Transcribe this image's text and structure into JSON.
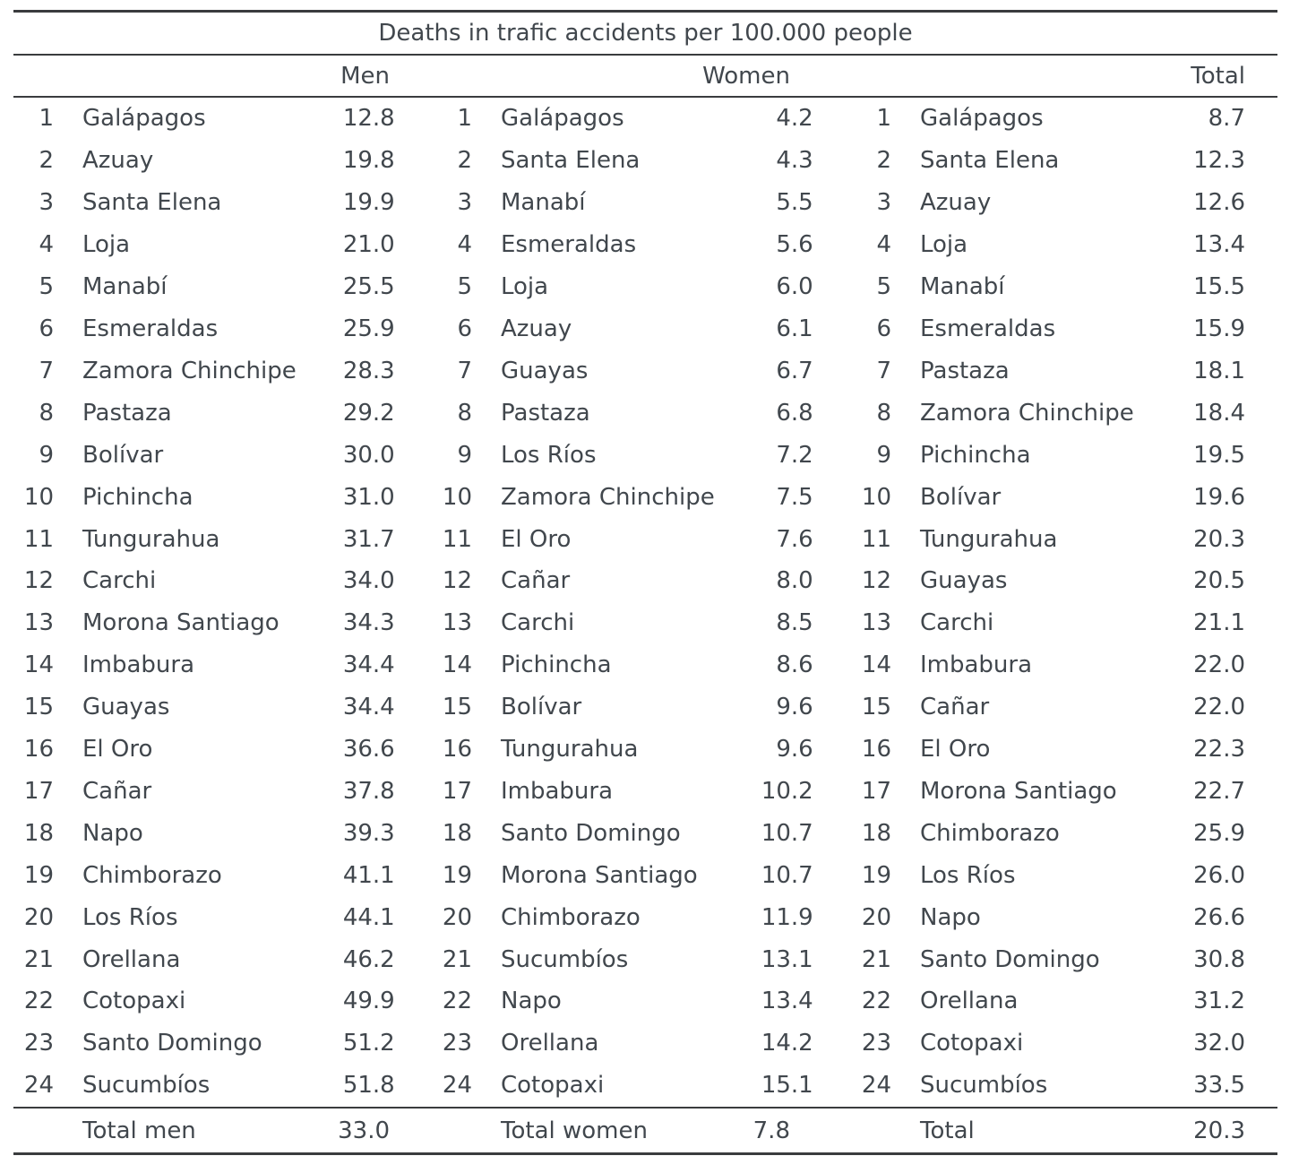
{
  "chart_data": {
    "type": "table",
    "title": "Deaths in trafic accidents per 100.000 people",
    "layout": {
      "panels": 3,
      "rows_per_panel": 24,
      "grid": "off",
      "rules": "horizontal-only"
    },
    "colors": {
      "text": "#41474d",
      "rule": "#3a3c3e",
      "background": "#ffffff"
    },
    "groups": [
      {
        "header": "Men",
        "total_label": "Total men",
        "total_value": "33.0",
        "rows": [
          [
            "1",
            "Galápagos",
            "12.8"
          ],
          [
            "2",
            "Azuay",
            "19.8"
          ],
          [
            "3",
            "Santa Elena",
            "19.9"
          ],
          [
            "4",
            "Loja",
            "21.0"
          ],
          [
            "5",
            "Manabí",
            "25.5"
          ],
          [
            "6",
            "Esmeraldas",
            "25.9"
          ],
          [
            "7",
            "Zamora Chinchipe",
            "28.3"
          ],
          [
            "8",
            "Pastaza",
            "29.2"
          ],
          [
            "9",
            "Bolívar",
            "30.0"
          ],
          [
            "10",
            "Pichincha",
            "31.0"
          ],
          [
            "11",
            "Tungurahua",
            "31.7"
          ],
          [
            "12",
            "Carchi",
            "34.0"
          ],
          [
            "13",
            "Morona Santiago",
            "34.3"
          ],
          [
            "14",
            "Imbabura",
            "34.4"
          ],
          [
            "15",
            "Guayas",
            "34.4"
          ],
          [
            "16",
            "El Oro",
            "36.6"
          ],
          [
            "17",
            "Cañar",
            "37.8"
          ],
          [
            "18",
            "Napo",
            "39.3"
          ],
          [
            "19",
            "Chimborazo",
            "41.1"
          ],
          [
            "20",
            "Los Ríos",
            "44.1"
          ],
          [
            "21",
            "Orellana",
            "46.2"
          ],
          [
            "22",
            "Cotopaxi",
            "49.9"
          ],
          [
            "23",
            "Santo Domingo",
            "51.2"
          ],
          [
            "24",
            "Sucumbíos",
            "51.8"
          ]
        ]
      },
      {
        "header": "Women",
        "total_label": "Total women",
        "total_value": "7.8",
        "rows": [
          [
            "1",
            "Galápagos",
            "4.2"
          ],
          [
            "2",
            "Santa Elena",
            "4.3"
          ],
          [
            "3",
            "Manabí",
            "5.5"
          ],
          [
            "4",
            "Esmeraldas",
            "5.6"
          ],
          [
            "5",
            "Loja",
            "6.0"
          ],
          [
            "6",
            "Azuay",
            "6.1"
          ],
          [
            "7",
            "Guayas",
            "6.7"
          ],
          [
            "8",
            "Pastaza",
            "6.8"
          ],
          [
            "9",
            "Los Ríos",
            "7.2"
          ],
          [
            "10",
            "Zamora Chinchipe",
            "7.5"
          ],
          [
            "11",
            "El Oro",
            "7.6"
          ],
          [
            "12",
            "Cañar",
            "8.0"
          ],
          [
            "13",
            "Carchi",
            "8.5"
          ],
          [
            "14",
            "Pichincha",
            "8.6"
          ],
          [
            "15",
            "Bolívar",
            "9.6"
          ],
          [
            "16",
            "Tungurahua",
            "9.6"
          ],
          [
            "17",
            "Imbabura",
            "10.2"
          ],
          [
            "18",
            "Santo Domingo",
            "10.7"
          ],
          [
            "19",
            "Morona Santiago",
            "10.7"
          ],
          [
            "20",
            "Chimborazo",
            "11.9"
          ],
          [
            "21",
            "Sucumbíos",
            "13.1"
          ],
          [
            "22",
            "Napo",
            "13.4"
          ],
          [
            "23",
            "Orellana",
            "14.2"
          ],
          [
            "24",
            "Cotopaxi",
            "15.1"
          ]
        ]
      },
      {
        "header": "Total",
        "total_label": "Total",
        "total_value": "20.3",
        "rows": [
          [
            "1",
            "Galápagos",
            "8.7"
          ],
          [
            "2",
            "Santa Elena",
            "12.3"
          ],
          [
            "3",
            "Azuay",
            "12.6"
          ],
          [
            "4",
            "Loja",
            "13.4"
          ],
          [
            "5",
            "Manabí",
            "15.5"
          ],
          [
            "6",
            "Esmeraldas",
            "15.9"
          ],
          [
            "7",
            "Pastaza",
            "18.1"
          ],
          [
            "8",
            "Zamora Chinchipe",
            "18.4"
          ],
          [
            "9",
            "Pichincha",
            "19.5"
          ],
          [
            "10",
            "Bolívar",
            "19.6"
          ],
          [
            "11",
            "Tungurahua",
            "20.3"
          ],
          [
            "12",
            "Guayas",
            "20.5"
          ],
          [
            "13",
            "Carchi",
            "21.1"
          ],
          [
            "14",
            "Imbabura",
            "22.0"
          ],
          [
            "15",
            "Cañar",
            "22.0"
          ],
          [
            "16",
            "El Oro",
            "22.3"
          ],
          [
            "17",
            "Morona Santiago",
            "22.7"
          ],
          [
            "18",
            "Chimborazo",
            "25.9"
          ],
          [
            "19",
            "Los Ríos",
            "26.0"
          ],
          [
            "20",
            "Napo",
            "26.6"
          ],
          [
            "21",
            "Santo Domingo",
            "30.8"
          ],
          [
            "22",
            "Orellana",
            "31.2"
          ],
          [
            "23",
            "Cotopaxi",
            "32.0"
          ],
          [
            "24",
            "Sucumbíos",
            "33.5"
          ]
        ]
      }
    ]
  }
}
